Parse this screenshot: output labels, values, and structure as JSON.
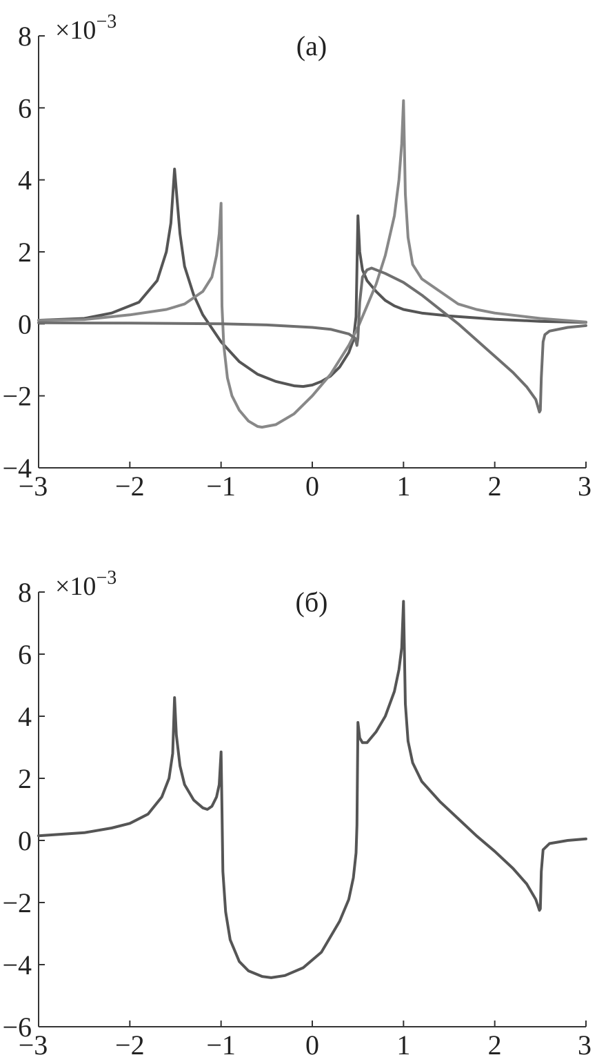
{
  "chart_data": [
    {
      "type": "line",
      "panel_label": "(a)",
      "multiplier_label": "×10",
      "multiplier_exponent": "−3",
      "xlim": [
        -3,
        3
      ],
      "ylim": [
        -4,
        8
      ],
      "xticks": [
        -3,
        -2,
        -1,
        0,
        1,
        2,
        3
      ],
      "xtick_labels": [
        "−3",
        "−2",
        "−1",
        "0",
        "1",
        "2",
        "3"
      ],
      "yticks": [
        -4,
        -2,
        0,
        2,
        4,
        6,
        8
      ],
      "ytick_labels": [
        "−4",
        "−2",
        "0",
        "2",
        "4",
        "6",
        "8"
      ],
      "grid": false,
      "legend": "none",
      "series": [
        {
          "color": "#555555",
          "points": [
            [
              -3.0,
              0.1
            ],
            [
              -2.5,
              0.15
            ],
            [
              -2.2,
              0.3
            ],
            [
              -1.9,
              0.6
            ],
            [
              -1.7,
              1.2
            ],
            [
              -1.6,
              2.0
            ],
            [
              -1.55,
              2.8
            ],
            [
              -1.51,
              4.3
            ],
            [
              -1.48,
              3.4
            ],
            [
              -1.45,
              2.5
            ],
            [
              -1.4,
              1.6
            ],
            [
              -1.3,
              0.8
            ],
            [
              -1.2,
              0.25
            ],
            [
              -1.0,
              -0.5
            ],
            [
              -0.8,
              -1.05
            ],
            [
              -0.6,
              -1.4
            ],
            [
              -0.4,
              -1.6
            ],
            [
              -0.2,
              -1.72
            ],
            [
              -0.1,
              -1.74
            ],
            [
              0.0,
              -1.7
            ],
            [
              0.1,
              -1.6
            ],
            [
              0.2,
              -1.45
            ],
            [
              0.3,
              -1.2
            ],
            [
              0.4,
              -0.8
            ],
            [
              0.45,
              -0.45
            ],
            [
              0.48,
              0.2
            ],
            [
              0.5,
              3.0
            ],
            [
              0.52,
              2.0
            ],
            [
              0.55,
              1.5
            ],
            [
              0.6,
              1.2
            ],
            [
              0.7,
              0.9
            ],
            [
              0.8,
              0.65
            ],
            [
              0.9,
              0.5
            ],
            [
              1.0,
              0.4
            ],
            [
              1.2,
              0.3
            ],
            [
              1.5,
              0.22
            ],
            [
              2.0,
              0.13
            ],
            [
              2.5,
              0.07
            ],
            [
              3.0,
              0.04
            ]
          ]
        },
        {
          "color": "#888888",
          "points": [
            [
              -3.0,
              0.1
            ],
            [
              -2.5,
              0.12
            ],
            [
              -2.0,
              0.25
            ],
            [
              -1.6,
              0.4
            ],
            [
              -1.4,
              0.55
            ],
            [
              -1.2,
              0.9
            ],
            [
              -1.1,
              1.3
            ],
            [
              -1.05,
              1.9
            ],
            [
              -1.02,
              2.5
            ],
            [
              -1.0,
              3.35
            ],
            [
              -0.99,
              0.5
            ],
            [
              -0.97,
              -0.6
            ],
            [
              -0.93,
              -1.5
            ],
            [
              -0.88,
              -2.0
            ],
            [
              -0.8,
              -2.4
            ],
            [
              -0.7,
              -2.7
            ],
            [
              -0.6,
              -2.85
            ],
            [
              -0.55,
              -2.87
            ],
            [
              -0.4,
              -2.8
            ],
            [
              -0.2,
              -2.5
            ],
            [
              0.0,
              -2.0
            ],
            [
              0.2,
              -1.4
            ],
            [
              0.4,
              -0.6
            ],
            [
              0.5,
              -0.1
            ],
            [
              0.6,
              0.5
            ],
            [
              0.7,
              1.1
            ],
            [
              0.8,
              1.9
            ],
            [
              0.9,
              3.0
            ],
            [
              0.95,
              4.0
            ],
            [
              0.98,
              5.0
            ],
            [
              1.0,
              6.2
            ],
            [
              1.02,
              3.6
            ],
            [
              1.05,
              2.4
            ],
            [
              1.1,
              1.65
            ],
            [
              1.2,
              1.25
            ],
            [
              1.4,
              0.9
            ],
            [
              1.6,
              0.55
            ],
            [
              1.8,
              0.4
            ],
            [
              2.0,
              0.3
            ],
            [
              2.5,
              0.15
            ],
            [
              3.0,
              0.05
            ]
          ]
        },
        {
          "color": "#6f6f6f",
          "points": [
            [
              -3.0,
              0.03
            ],
            [
              -2.0,
              0.02
            ],
            [
              -1.0,
              0.0
            ],
            [
              -0.5,
              -0.03
            ],
            [
              0.0,
              -0.1
            ],
            [
              0.2,
              -0.15
            ],
            [
              0.4,
              -0.28
            ],
            [
              0.47,
              -0.4
            ],
            [
              0.49,
              -0.6
            ],
            [
              0.5,
              -0.4
            ],
            [
              0.52,
              0.6
            ],
            [
              0.55,
              1.3
            ],
            [
              0.6,
              1.5
            ],
            [
              0.65,
              1.55
            ],
            [
              0.8,
              1.4
            ],
            [
              1.0,
              1.15
            ],
            [
              1.2,
              0.8
            ],
            [
              1.4,
              0.4
            ],
            [
              1.6,
              0.0
            ],
            [
              1.8,
              -0.45
            ],
            [
              2.0,
              -0.9
            ],
            [
              2.2,
              -1.35
            ],
            [
              2.35,
              -1.75
            ],
            [
              2.45,
              -2.1
            ],
            [
              2.49,
              -2.45
            ],
            [
              2.5,
              -2.4
            ],
            [
              2.51,
              -1.5
            ],
            [
              2.53,
              -0.5
            ],
            [
              2.55,
              -0.3
            ],
            [
              2.6,
              -0.2
            ],
            [
              2.8,
              -0.1
            ],
            [
              3.0,
              -0.05
            ]
          ]
        }
      ]
    },
    {
      "type": "line",
      "panel_label": "(б)",
      "multiplier_label": "×10",
      "multiplier_exponent": "−3",
      "xlim": [
        -3,
        3
      ],
      "ylim": [
        -6,
        8
      ],
      "xticks": [
        -3,
        -2,
        -1,
        0,
        1,
        2,
        3
      ],
      "xtick_labels": [
        "−3",
        "−2",
        "−1",
        "0",
        "1",
        "2",
        "3"
      ],
      "yticks": [
        -6,
        -4,
        -2,
        0,
        2,
        4,
        6,
        8
      ],
      "ytick_labels": [
        "−6",
        "−4",
        "−2",
        "0",
        "2",
        "4",
        "6",
        "8"
      ],
      "grid": false,
      "legend": "none",
      "series": [
        {
          "color": "#555555",
          "points": [
            [
              -3.0,
              0.15
            ],
            [
              -2.5,
              0.25
            ],
            [
              -2.2,
              0.4
            ],
            [
              -2.0,
              0.55
            ],
            [
              -1.8,
              0.85
            ],
            [
              -1.65,
              1.4
            ],
            [
              -1.57,
              2.0
            ],
            [
              -1.53,
              2.8
            ],
            [
              -1.51,
              4.6
            ],
            [
              -1.49,
              3.4
            ],
            [
              -1.45,
              2.4
            ],
            [
              -1.4,
              1.8
            ],
            [
              -1.3,
              1.3
            ],
            [
              -1.2,
              1.05
            ],
            [
              -1.15,
              1.0
            ],
            [
              -1.1,
              1.1
            ],
            [
              -1.05,
              1.4
            ],
            [
              -1.02,
              1.8
            ],
            [
              -1.0,
              2.85
            ],
            [
              -0.99,
              1.0
            ],
            [
              -0.98,
              -1.0
            ],
            [
              -0.95,
              -2.3
            ],
            [
              -0.9,
              -3.2
            ],
            [
              -0.8,
              -3.9
            ],
            [
              -0.7,
              -4.2
            ],
            [
              -0.55,
              -4.38
            ],
            [
              -0.45,
              -4.42
            ],
            [
              -0.3,
              -4.35
            ],
            [
              -0.1,
              -4.1
            ],
            [
              0.1,
              -3.6
            ],
            [
              0.3,
              -2.6
            ],
            [
              0.4,
              -1.9
            ],
            [
              0.45,
              -1.2
            ],
            [
              0.48,
              -0.4
            ],
            [
              0.49,
              0.5
            ],
            [
              0.5,
              3.8
            ],
            [
              0.52,
              3.3
            ],
            [
              0.55,
              3.15
            ],
            [
              0.6,
              3.15
            ],
            [
              0.7,
              3.5
            ],
            [
              0.8,
              4.0
            ],
            [
              0.9,
              4.8
            ],
            [
              0.95,
              5.5
            ],
            [
              0.98,
              6.2
            ],
            [
              1.0,
              7.7
            ],
            [
              1.02,
              4.4
            ],
            [
              1.05,
              3.2
            ],
            [
              1.1,
              2.5
            ],
            [
              1.2,
              1.9
            ],
            [
              1.4,
              1.25
            ],
            [
              1.6,
              0.7
            ],
            [
              1.8,
              0.15
            ],
            [
              2.0,
              -0.35
            ],
            [
              2.2,
              -0.9
            ],
            [
              2.35,
              -1.4
            ],
            [
              2.45,
              -1.9
            ],
            [
              2.49,
              -2.25
            ],
            [
              2.5,
              -2.2
            ],
            [
              2.51,
              -1.0
            ],
            [
              2.53,
              -0.3
            ],
            [
              2.6,
              -0.1
            ],
            [
              2.8,
              0.0
            ],
            [
              3.0,
              0.05
            ]
          ]
        }
      ]
    }
  ]
}
